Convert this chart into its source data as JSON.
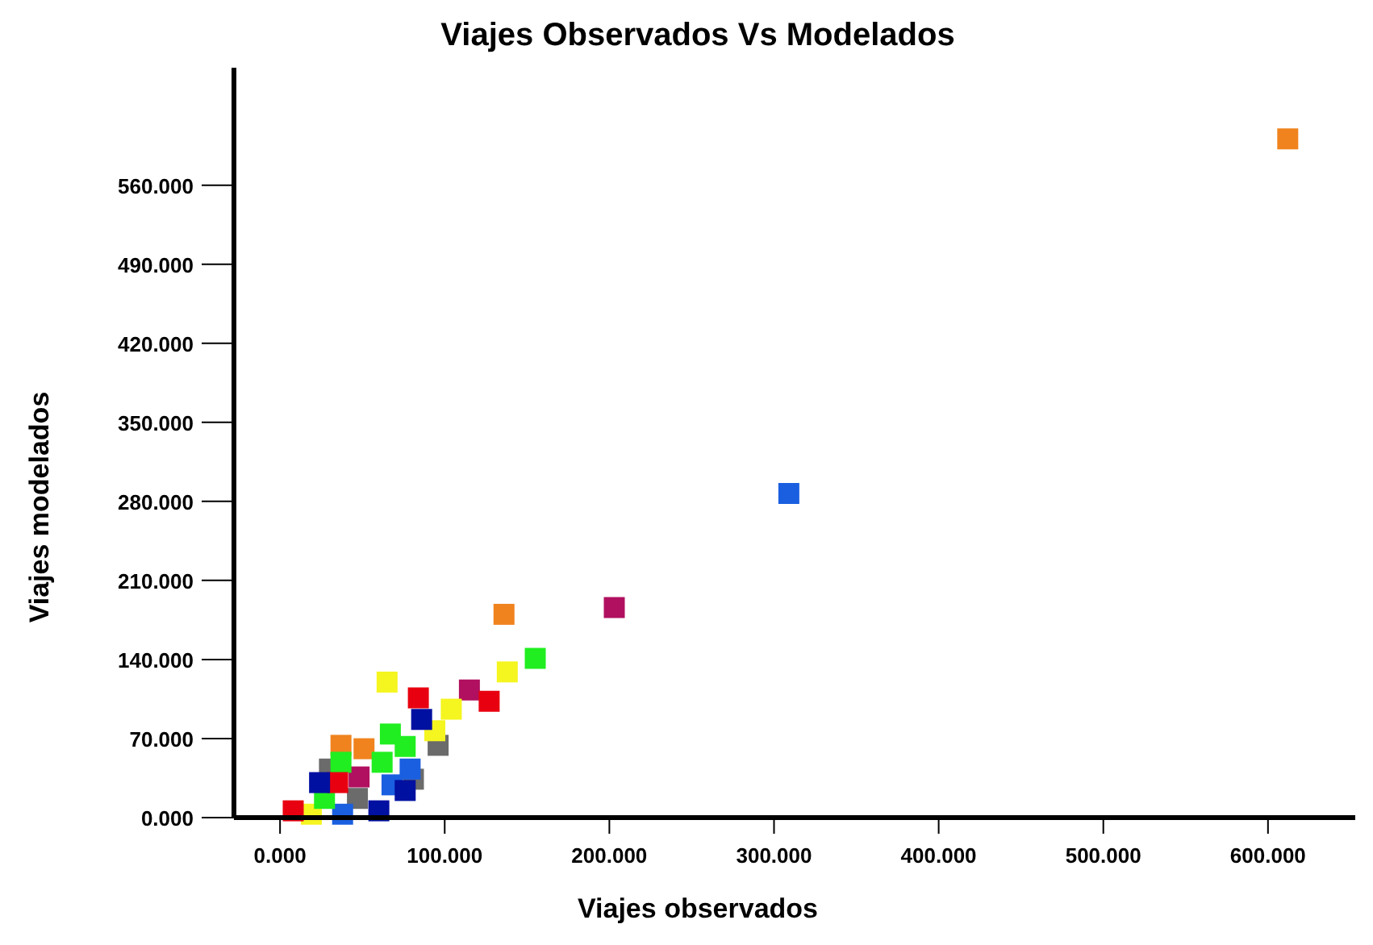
{
  "chart_data": {
    "type": "scatter",
    "title": "Viajes Observados Vs Modelados",
    "xlabel": "Viajes observados",
    "ylabel": "Viajes modelados",
    "marker": "square",
    "grid": false,
    "xlim": [
      -28,
      653
    ],
    "ylim": [
      0,
      664
    ],
    "xticks": [
      {
        "value": 0,
        "label": "0.000"
      },
      {
        "value": 100,
        "label": "100.000"
      },
      {
        "value": 200,
        "label": "200.000"
      },
      {
        "value": 300,
        "label": "300.000"
      },
      {
        "value": 400,
        "label": "400.000"
      },
      {
        "value": 500,
        "label": "500.000"
      },
      {
        "value": 600,
        "label": "600.000"
      }
    ],
    "yticks": [
      {
        "value": 0,
        "label": "0.000"
      },
      {
        "value": 70,
        "label": "70.000"
      },
      {
        "value": 140,
        "label": "140.000"
      },
      {
        "value": 210,
        "label": "210.000"
      },
      {
        "value": 280,
        "label": "280.000"
      },
      {
        "value": 350,
        "label": "350.000"
      },
      {
        "value": 420,
        "label": "420.000"
      },
      {
        "value": 490,
        "label": "490.000"
      },
      {
        "value": 560,
        "label": "560.000"
      }
    ],
    "series": [
      {
        "color": "#6b6b6b",
        "x": [
          96,
          47,
          30,
          81
        ],
        "values": [
          64,
          17,
          43,
          34
        ]
      },
      {
        "color": "#f0831e",
        "x": [
          612,
          136,
          37,
          51
        ],
        "values": [
          601,
          180,
          64,
          61
        ]
      },
      {
        "color": "#1a5fe0",
        "x": [
          309,
          79,
          68,
          38
        ],
        "values": [
          287,
          43,
          29,
          3
        ]
      },
      {
        "color": "#b0105f",
        "x": [
          203,
          115,
          48
        ],
        "values": [
          186,
          113,
          36
        ]
      },
      {
        "color": "#f5f520",
        "x": [
          138,
          65,
          104,
          94,
          19
        ],
        "values": [
          129,
          120,
          96,
          77,
          3
        ]
      },
      {
        "color": "#20ee20",
        "x": [
          155,
          67,
          76,
          37,
          27,
          62
        ],
        "values": [
          141,
          74,
          63,
          49,
          17,
          49
        ]
      },
      {
        "color": "#e80010",
        "x": [
          84,
          127,
          8,
          35
        ],
        "values": [
          106,
          103,
          6,
          31
        ]
      },
      {
        "color": "#0010a0",
        "x": [
          86,
          60,
          24,
          76
        ],
        "values": [
          87,
          6,
          31,
          24
        ]
      }
    ]
  }
}
